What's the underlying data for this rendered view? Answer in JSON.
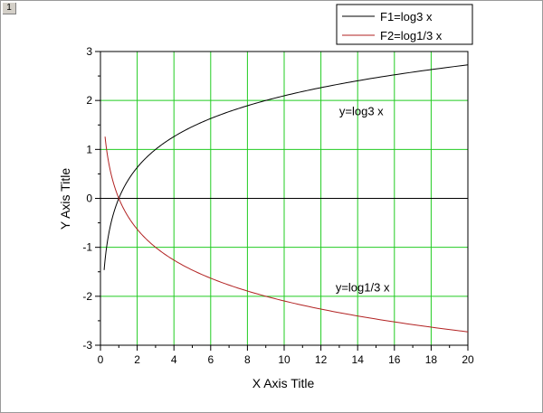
{
  "window": {
    "tab_label": "1"
  },
  "chart_data": {
    "type": "line",
    "xlabel": "X Axis Title",
    "ylabel": "Y Axis Title",
    "xlim": [
      0,
      20
    ],
    "ylim": [
      -3,
      3
    ],
    "x_ticks": [
      0,
      2,
      4,
      6,
      8,
      10,
      12,
      14,
      16,
      18,
      20
    ],
    "y_ticks": [
      -3,
      -2,
      -1,
      0,
      1,
      2,
      3
    ],
    "grid": true,
    "grid_color": "#22cc22",
    "legend_position": "top-right",
    "series": [
      {
        "name": "F1=log3 x",
        "color": "#000000",
        "function": "log3(x)",
        "x": [
          0.2,
          0.3,
          0.5,
          0.75,
          1,
          1.5,
          2,
          3,
          4,
          6,
          8,
          10,
          12,
          14,
          16,
          18,
          20
        ],
        "y": [
          -1.46,
          -1.1,
          -0.63,
          -0.26,
          0,
          0.37,
          0.63,
          1.0,
          1.26,
          1.63,
          1.89,
          2.1,
          2.26,
          2.4,
          2.52,
          2.63,
          2.73
        ]
      },
      {
        "name": "F2=log1/3 x",
        "color": "#b22222",
        "function": "log1/3(x)",
        "x": [
          0.25,
          0.3,
          0.5,
          0.75,
          1,
          1.5,
          2,
          3,
          4,
          6,
          8,
          10,
          12,
          14,
          16,
          18,
          20
        ],
        "y": [
          1.26,
          1.1,
          0.63,
          0.26,
          0,
          -0.37,
          -0.63,
          -1.0,
          -1.26,
          -1.63,
          -1.89,
          -2.1,
          -2.26,
          -2.4,
          -2.52,
          -2.63,
          -2.73
        ]
      }
    ],
    "annotations": [
      {
        "text": "y=log3 x",
        "x": 13,
        "y": 1.7
      },
      {
        "text": "y=log1/3 x",
        "x": 12.8,
        "y": -1.9
      }
    ]
  }
}
